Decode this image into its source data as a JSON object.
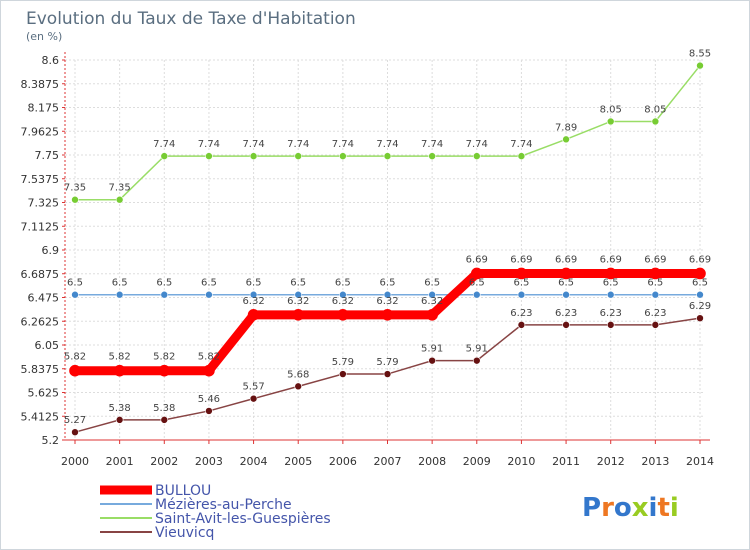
{
  "chart_data": {
    "type": "line",
    "title": "Evolution du Taux de Taxe d'Habitation",
    "ylabel": "(en %)",
    "xlabel": "",
    "x": [
      "2000",
      "2001",
      "2002",
      "2003",
      "2004",
      "2005",
      "2006",
      "2007",
      "2008",
      "2009",
      "2010",
      "2011",
      "2012",
      "2013",
      "2014"
    ],
    "ylim": [
      5.2,
      8.6
    ],
    "yticks": [
      "8.6",
      "8.3875",
      "8.175",
      "7.9625",
      "7.75",
      "7.5375",
      "7.325",
      "7.1125",
      "6.9",
      "6.6875",
      "6.475",
      "6.2625",
      "6.05",
      "5.8375",
      "5.625",
      "5.4125",
      "5.2"
    ],
    "grid": true,
    "legend_position": "bottom-left",
    "series": [
      {
        "name": "Saint-Avit-les-Guespières",
        "color": "#99dd66",
        "marker": "#77cc33",
        "width": 1.5,
        "values": [
          7.35,
          7.35,
          7.74,
          7.74,
          7.74,
          7.74,
          7.74,
          7.74,
          7.74,
          7.74,
          7.74,
          7.89,
          8.05,
          8.05,
          8.55
        ],
        "labels": [
          "7.35",
          "7.35",
          "7.74",
          "7.74",
          "7.74",
          "7.74",
          "7.74",
          "7.74",
          "7.74",
          "7.74",
          "7.74",
          "7.89",
          "8.05",
          "8.05",
          "8.55"
        ]
      },
      {
        "name": "Mézières-au-Perche",
        "color": "#77aadd",
        "marker": "#4488cc",
        "width": 1.5,
        "values": [
          6.5,
          6.5,
          6.5,
          6.5,
          6.5,
          6.5,
          6.5,
          6.5,
          6.5,
          6.5,
          6.5,
          6.5,
          6.5,
          6.5,
          6.5
        ],
        "labels": [
          "6.5",
          "6.5",
          "6.5",
          "6.5",
          "6.5",
          "6.5",
          "6.5",
          "6.5",
          "6.5",
          "6.5",
          "6.5",
          "6.5",
          "6.5",
          "6.5",
          "6.5"
        ]
      },
      {
        "name": "Vieuvicq",
        "color": "#884444",
        "marker": "#661111",
        "width": 1.5,
        "values": [
          5.27,
          5.38,
          5.38,
          5.46,
          5.57,
          5.68,
          5.79,
          5.79,
          5.91,
          5.91,
          6.23,
          6.23,
          6.23,
          6.23,
          6.29
        ],
        "labels": [
          "5.27",
          "5.38",
          "5.38",
          "5.46",
          "5.57",
          "5.68",
          "5.79",
          "5.79",
          "5.91",
          "5.91",
          "6.23",
          "6.23",
          "6.23",
          "6.23",
          "6.29"
        ]
      },
      {
        "name": "BULLOU",
        "color": "#ff0000",
        "marker": "#ff0000",
        "width": 9,
        "values": [
          5.82,
          5.82,
          5.82,
          5.82,
          6.32,
          6.32,
          6.32,
          6.32,
          6.32,
          6.69,
          6.69,
          6.69,
          6.69,
          6.69,
          6.69
        ],
        "labels": [
          "5.82",
          "5.82",
          "5.82",
          "5.82",
          "6.32",
          "6.32",
          "6.32",
          "6.32",
          "6.32",
          "6.69",
          "6.69",
          "6.69",
          "6.69",
          "6.69",
          "6.69"
        ]
      }
    ],
    "legend_order": [
      "BULLOU",
      "Mézières-au-Perche",
      "Saint-Avit-les-Guespières",
      "Vieuvicq"
    ]
  },
  "logo": {
    "letters": [
      "P",
      "r",
      "o",
      "x",
      "i",
      "t",
      "i"
    ],
    "colors": [
      "#3377cc",
      "#ee7722",
      "#3377cc",
      "#99cc22",
      "#3377cc",
      "#ee7722",
      "#99cc22"
    ]
  }
}
